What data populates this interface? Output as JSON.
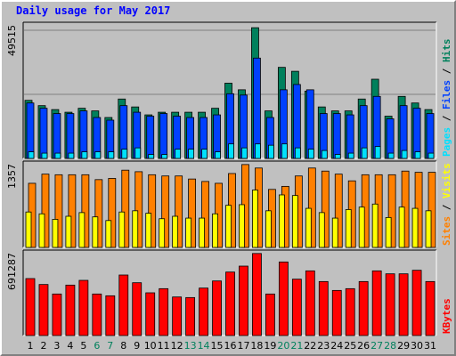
{
  "page": {
    "title": "Daily usage for May 2017"
  },
  "colors": {
    "hits": "#00805c",
    "files": "#0040ff",
    "pages": "#00e0ff",
    "visits": "#ffff00",
    "sites": "#ff8000",
    "kbytes": "#ff0000",
    "weekday_label": "#000000",
    "weekend_label": "#00805c",
    "title": "#0000ff"
  },
  "side_labels": {
    "top": [
      {
        "text": "Pages",
        "color": "#00e0ff"
      },
      {
        "text": " / ",
        "color": "#000000"
      },
      {
        "text": "Files",
        "color": "#0040ff"
      },
      {
        "text": " / ",
        "color": "#000000"
      },
      {
        "text": "Hits",
        "color": "#00805c"
      }
    ],
    "mid": [
      {
        "text": "Sites",
        "color": "#ff8000"
      },
      {
        "text": " / ",
        "color": "#000000"
      },
      {
        "text": "Visits",
        "color": "#ffff00"
      }
    ],
    "bottom": [
      {
        "text": "KBytes",
        "color": "#ff0000"
      }
    ]
  },
  "chart_data": [
    {
      "type": "bar",
      "title": "Daily usage for May 2017",
      "categories": [
        "1",
        "2",
        "3",
        "4",
        "5",
        "6",
        "7",
        "8",
        "9",
        "10",
        "11",
        "12",
        "13",
        "14",
        "15",
        "16",
        "17",
        "18",
        "19",
        "20",
        "21",
        "22",
        "23",
        "24",
        "25",
        "26",
        "27",
        "28",
        "29",
        "30",
        "31"
      ],
      "weekend_days": [
        "6",
        "7",
        "13",
        "14",
        "20",
        "21",
        "27",
        "28"
      ],
      "ylabel": "49515",
      "ylim": [
        0,
        49515
      ],
      "series": [
        {
          "name": "Hits",
          "values": [
            22000,
            20000,
            18500,
            17500,
            19000,
            18000,
            15500,
            22500,
            19500,
            16500,
            17500,
            17500,
            17500,
            17500,
            19000,
            28500,
            26000,
            49515,
            18000,
            34500,
            33000,
            25500,
            19500,
            18000,
            18000,
            22500,
            30000,
            16000,
            23500,
            21000,
            18500
          ]
        },
        {
          "name": "Files",
          "values": [
            21000,
            19000,
            17000,
            17000,
            18000,
            15500,
            14500,
            20000,
            17500,
            16000,
            17000,
            16000,
            15500,
            15500,
            16500,
            24500,
            24000,
            38000,
            15500,
            26000,
            28000,
            26000,
            17000,
            17000,
            16500,
            20000,
            23500,
            15000,
            20000,
            19000,
            17000
          ]
        },
        {
          "name": "Pages",
          "values": [
            2500,
            2000,
            2000,
            2000,
            2500,
            2500,
            2500,
            3500,
            4000,
            1500,
            1500,
            3500,
            3500,
            3500,
            2500,
            5500,
            4000,
            5500,
            5000,
            5500,
            4000,
            3500,
            3000,
            1500,
            2000,
            4000,
            4500,
            2000,
            3000,
            2500,
            2000
          ]
        }
      ]
    },
    {
      "type": "bar",
      "categories": [
        "1",
        "2",
        "3",
        "4",
        "5",
        "6",
        "7",
        "8",
        "9",
        "10",
        "11",
        "12",
        "13",
        "14",
        "15",
        "16",
        "17",
        "18",
        "19",
        "20",
        "21",
        "22",
        "23",
        "24",
        "25",
        "26",
        "27",
        "28",
        "29",
        "30",
        "31"
      ],
      "ylabel": "1357",
      "ylim": [
        0,
        1357
      ],
      "series": [
        {
          "name": "Sites",
          "values": [
            1050,
            1200,
            1190,
            1190,
            1190,
            1110,
            1130,
            1265,
            1240,
            1190,
            1170,
            1170,
            1120,
            1080,
            1050,
            1210,
            1357,
            1300,
            950,
            1000,
            1170,
            1300,
            1250,
            1200,
            1090,
            1190,
            1190,
            1190,
            1250,
            1230,
            1230
          ]
        },
        {
          "name": "Visits",
          "values": [
            580,
            550,
            460,
            510,
            570,
            500,
            440,
            580,
            600,
            560,
            470,
            510,
            480,
            480,
            550,
            690,
            700,
            940,
            600,
            860,
            850,
            640,
            570,
            480,
            620,
            660,
            710,
            490,
            660,
            640,
            600
          ]
        }
      ]
    },
    {
      "type": "bar",
      "categories": [
        "1",
        "2",
        "3",
        "4",
        "5",
        "6",
        "7",
        "8",
        "9",
        "10",
        "11",
        "12",
        "13",
        "14",
        "15",
        "16",
        "17",
        "18",
        "19",
        "20",
        "21",
        "22",
        "23",
        "24",
        "25",
        "26",
        "27",
        "28",
        "29",
        "30",
        "31"
      ],
      "ylabel": "691287",
      "ylim": [
        0,
        691287
      ],
      "series": [
        {
          "name": "KBytes",
          "values": [
            480000,
            430000,
            350000,
            425000,
            465000,
            350000,
            335000,
            510000,
            445000,
            360000,
            395000,
            325000,
            320000,
            400000,
            460000,
            535000,
            585000,
            691287,
            350000,
            620000,
            475000,
            545000,
            455000,
            380000,
            395000,
            455000,
            545000,
            520000,
            520000,
            550000,
            455000
          ]
        }
      ]
    }
  ]
}
